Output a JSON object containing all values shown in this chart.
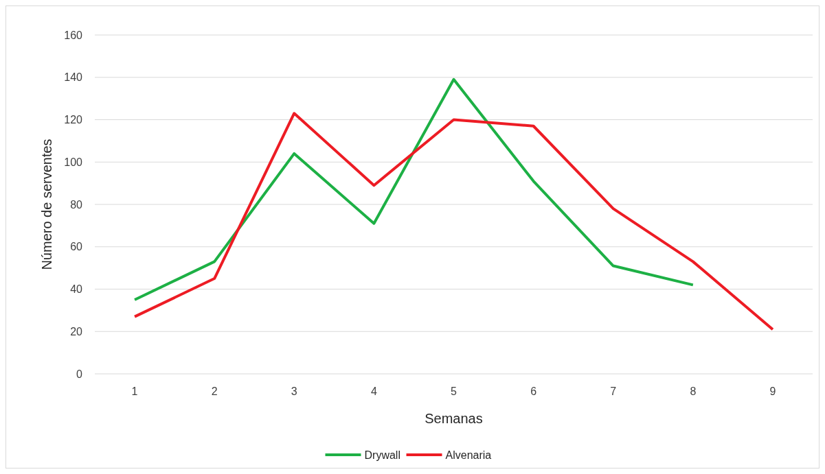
{
  "chart_data": {
    "type": "line",
    "xlabel": "Semanas",
    "ylabel": "Número de serventes",
    "categories": [
      "1",
      "2",
      "3",
      "4",
      "5",
      "6",
      "7",
      "8",
      "9"
    ],
    "series": [
      {
        "name": "Drywall",
        "color": "#1db045",
        "values": [
          35,
          53,
          104,
          71,
          139,
          91,
          51,
          42,
          null
        ]
      },
      {
        "name": "Alvenaria",
        "color": "#ed1c24",
        "values": [
          27,
          45,
          123,
          89,
          120,
          117,
          78,
          53,
          21
        ]
      }
    ],
    "ylim": [
      0,
      160
    ],
    "yticks": [
      0,
      20,
      40,
      60,
      80,
      100,
      120,
      140,
      160
    ],
    "grid": "y",
    "legend": "bottom",
    "marker": "none",
    "line_style": "solid"
  }
}
